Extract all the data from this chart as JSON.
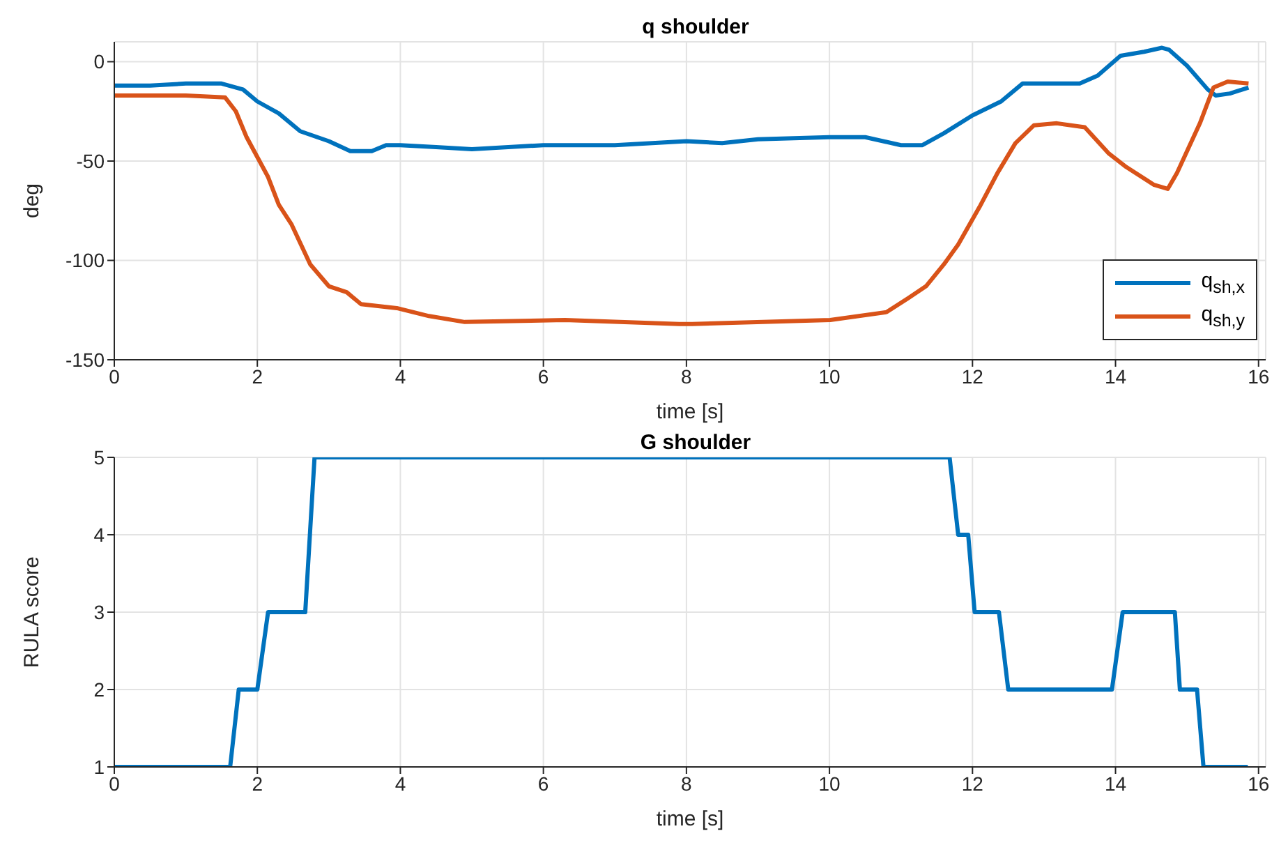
{
  "chart_data": [
    {
      "type": "line",
      "title": "q shoulder",
      "xlabel": "time [s]",
      "ylabel": "deg",
      "xlim": [
        0,
        16.1
      ],
      "xticks": [
        0,
        2,
        4,
        6,
        8,
        10,
        12,
        14,
        16
      ],
      "ylim": [
        -150,
        10
      ],
      "yticks": [
        -150,
        -100,
        -50,
        0
      ],
      "grid": true,
      "legend": "bottom right",
      "line_style": "solid",
      "marker": "none",
      "series": [
        {
          "name": "q$_{sh,x}$",
          "color": "#0072bd",
          "x": [
            0,
            0.5,
            1,
            1.5,
            1.8,
            2,
            2.3,
            2.6,
            3,
            3.3,
            3.6,
            3.8,
            4,
            4.5,
            5,
            6,
            7,
            8,
            8.5,
            9,
            10,
            10.5,
            11,
            11.3,
            11.6,
            12,
            12.4,
            12.7,
            13.5,
            13.75,
            14.07,
            14.4,
            14.65,
            14.75,
            15.0,
            15.29,
            15.4,
            15.6,
            15.86
          ],
          "values": [
            -12,
            -12,
            -11,
            -11,
            -14,
            -20,
            -26,
            -35,
            -40,
            -45,
            -45,
            -42,
            -42,
            -43,
            -44,
            -42,
            -42,
            -40,
            -41,
            -39,
            -38,
            -38,
            -42,
            -42,
            -36,
            -27,
            -20,
            -11,
            -11,
            -7,
            3,
            5,
            7,
            6,
            -2,
            -14,
            -17,
            -16,
            -13
          ]
        },
        {
          "name": "q$_{sh,y}$",
          "color": "#d95319",
          "x": [
            0,
            0.5,
            1,
            1.55,
            1.7,
            1.85,
            2,
            2.15,
            2.3,
            2.48,
            2.74,
            3,
            3.25,
            3.45,
            3.95,
            4.4,
            4.9,
            6.3,
            7.9,
            8.08,
            10.01,
            10.8,
            11.1,
            11.35,
            11.6,
            11.8,
            12.1,
            12.35,
            12.6,
            12.86,
            13.18,
            13.57,
            13.9,
            14.15,
            14.54,
            14.73,
            14.86,
            15.18,
            15.37,
            15.57,
            15.86
          ],
          "values": [
            -17,
            -17,
            -17,
            -18,
            -25,
            -38,
            -48,
            -58,
            -72,
            -82,
            -102,
            -113,
            -116,
            -122,
            -124,
            -128,
            -131,
            -130,
            -132,
            -132,
            -130,
            -126,
            -119,
            -113,
            -102,
            -92,
            -73,
            -56,
            -41,
            -32,
            -31,
            -33,
            -46,
            -53,
            -62,
            -64,
            -56,
            -31,
            -13,
            -10,
            -11
          ]
        }
      ]
    },
    {
      "type": "line",
      "title": "G shoulder",
      "xlabel": "time [s]",
      "ylabel": "RULA score",
      "xlim": [
        0,
        16.1
      ],
      "xticks": [
        0,
        2,
        4,
        6,
        8,
        10,
        12,
        14,
        16
      ],
      "ylim": [
        1,
        5
      ],
      "yticks": [
        1,
        2,
        3,
        4,
        5
      ],
      "grid": true,
      "line_style": "solid",
      "marker": "none",
      "series": [
        {
          "color": "#0072bd",
          "x": [
            0,
            1.62,
            1.74,
            2.0,
            2.15,
            2.67,
            2.8,
            11.68,
            11.8,
            11.94,
            12.03,
            12.37,
            12.5,
            13.95,
            14.1,
            14.83,
            14.9,
            15.14,
            15.23,
            15.85
          ],
          "values": [
            1,
            1,
            2,
            2,
            3,
            3,
            5,
            5,
            4,
            4,
            3,
            3,
            2,
            2,
            3,
            3,
            2,
            2,
            1,
            1
          ]
        }
      ]
    }
  ]
}
